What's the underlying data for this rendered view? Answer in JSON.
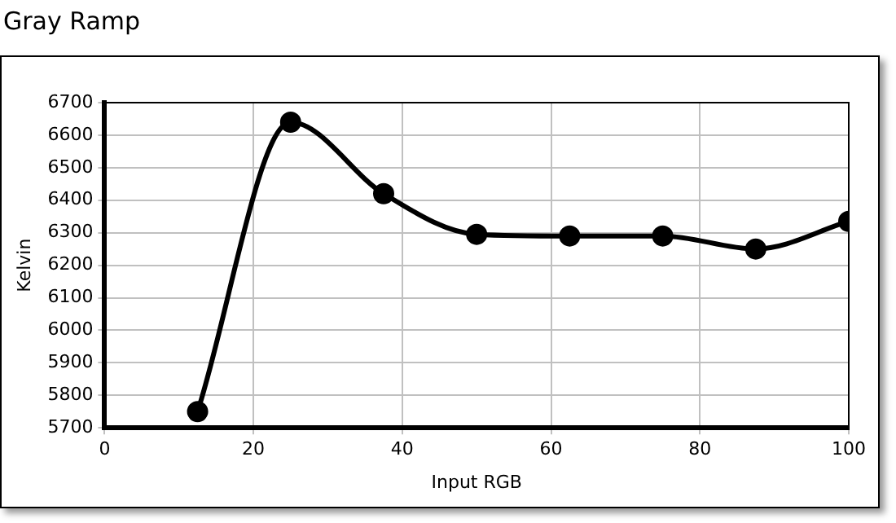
{
  "chart_data": {
    "type": "line",
    "title": "Gray Ramp",
    "xlabel": "Input RGB",
    "ylabel": "Kelvin",
    "x": [
      12.5,
      25,
      37.5,
      50,
      62.5,
      75,
      87.5,
      100
    ],
    "series": [
      {
        "color": "#000000",
        "values": [
          5750,
          6640,
          6420,
          6295,
          6290,
          6290,
          6250,
          6335
        ]
      }
    ],
    "xlim": [
      0,
      100
    ],
    "xticks": [
      0,
      20,
      40,
      60,
      80,
      100
    ],
    "ylim": [
      5700,
      6700
    ],
    "yticks": [
      5700,
      5800,
      5900,
      6000,
      6100,
      6200,
      6300,
      6400,
      6500,
      6600,
      6700
    ],
    "grid": true,
    "legend": false,
    "marker": "circle",
    "line_style": "solid"
  }
}
